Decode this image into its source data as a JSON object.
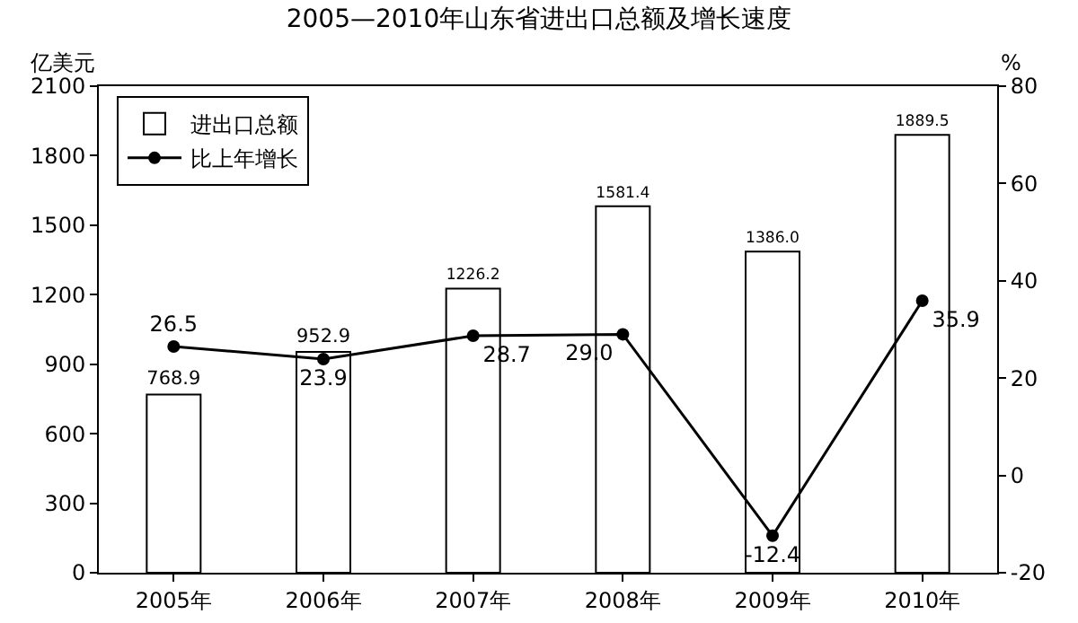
{
  "chart_data": {
    "type": "bar",
    "title": "2005—2010年山东省进出口总额及增长速度",
    "ylabel": "亿美元",
    "y2label": "%",
    "categories": [
      "2005年",
      "2006年",
      "2007年",
      "2008年",
      "2009年",
      "2010年"
    ],
    "series": [
      {
        "name": "进出口总额",
        "color": "#ffffff",
        "values": [
          768.9,
          952.9,
          1226.2,
          1581.4,
          1386.0,
          1889.5
        ],
        "value_labels": [
          "768.9",
          "952.9",
          "1226.2",
          "1581.4",
          "1386.0",
          "1889.5"
        ]
      },
      {
        "name": "比上年增长",
        "type": "line",
        "axis": "y2",
        "color": "#000000",
        "marker": "circle",
        "values": [
          26.5,
          23.9,
          28.7,
          29.0,
          -12.4,
          35.9
        ],
        "value_labels": [
          "26.5",
          "23.9",
          "28.7",
          "29.0",
          "-12.4",
          "35.9"
        ]
      }
    ],
    "ylim": [
      0,
      2100
    ],
    "yticks": [
      0,
      300,
      600,
      900,
      1200,
      1500,
      1800,
      2100
    ],
    "y2lim": [
      -20,
      80
    ],
    "y2ticks": [
      -20,
      0,
      20,
      40,
      60,
      80
    ],
    "grid": false,
    "legend": "top left"
  }
}
